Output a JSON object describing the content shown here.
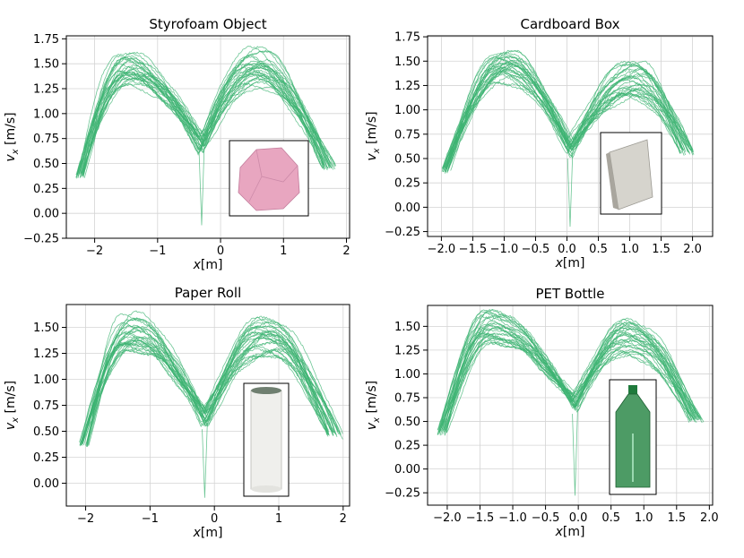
{
  "figure": {
    "trace_color": "#3cb371",
    "xlabel_var": "x",
    "xlabel_unit": "[m]",
    "ylabel_var": "v",
    "ylabel_sub": "x",
    "ylabel_unit": " [m/s]"
  },
  "chart_data": [
    {
      "type": "line",
      "title": "Styrofoam Object",
      "xlabel": "x[m]",
      "ylabel": "v_x [m/s]",
      "xlim": [
        -2.45,
        2.05
      ],
      "ylim": [
        -0.25,
        1.78
      ],
      "xticks": [
        -2,
        -1,
        0,
        1,
        2
      ],
      "xtick_labels": [
        "−2",
        "−1",
        "0",
        "1",
        "2"
      ],
      "yticks": [
        -0.25,
        0,
        0.25,
        0.5,
        0.75,
        1.0,
        1.25,
        1.5,
        1.75
      ],
      "ytick_labels": [
        "−0.25",
        "0.00",
        "0.25",
        "0.50",
        "0.75",
        "1.00",
        "1.25",
        "1.50",
        "1.75"
      ],
      "grid": true,
      "series_summary": {
        "n_traces": 30,
        "x_min": -2.3,
        "x_max": 1.85,
        "left_peak_x": -1.5,
        "left_peak_vx": 1.5,
        "right_peak_x": 0.55,
        "right_peak_vx": 1.55,
        "dip_x": -0.3,
        "dip_vx": 0.7,
        "end_vx": 0.45,
        "dip_outlier_vx": -0.12
      },
      "inset": {
        "label": "Styrofoam object",
        "kind": "blob",
        "color": "#e8a6c0"
      }
    },
    {
      "type": "line",
      "title": "Cardboard Box",
      "xlabel": "x[m]",
      "ylabel": "v_x [m/s]",
      "xlim": [
        -2.22,
        2.32
      ],
      "ylim": [
        -0.3,
        1.76
      ],
      "xticks": [
        -2.0,
        -1.5,
        -1.0,
        -0.5,
        0.0,
        0.5,
        1.0,
        1.5,
        2.0
      ],
      "xtick_labels": [
        "−2.0",
        "−1.5",
        "−1.0",
        "−0.5",
        "0.0",
        "0.5",
        "1.0",
        "1.5",
        "2.0"
      ],
      "yticks": [
        -0.25,
        0,
        0.25,
        0.5,
        0.75,
        1.0,
        1.25,
        1.5,
        1.75
      ],
      "ytick_labels": [
        "−0.25",
        "0.00",
        "0.25",
        "0.50",
        "0.75",
        "1.00",
        "1.25",
        "1.50",
        "1.75"
      ],
      "grid": true,
      "series_summary": {
        "n_traces": 30,
        "x_min": -2.0,
        "x_max": 2.05,
        "left_peak_x": -1.0,
        "left_peak_vx": 1.5,
        "right_peak_x": 1.05,
        "right_peak_vx": 1.38,
        "dip_x": 0.05,
        "dip_vx": 0.6,
        "end_vx": 0.55,
        "dip_outlier_vx": -0.2
      },
      "inset": {
        "label": "Cardboard box",
        "kind": "box",
        "color": "#d6d4cd"
      }
    },
    {
      "type": "line",
      "title": "Paper Roll",
      "xlabel": "x[m]",
      "ylabel": "v_x [m/s]",
      "xlim": [
        -2.3,
        2.1
      ],
      "ylim": [
        -0.22,
        1.72
      ],
      "xticks": [
        -2,
        -1,
        0,
        1,
        2
      ],
      "xtick_labels": [
        "−2",
        "−1",
        "0",
        "1",
        "2"
      ],
      "yticks": [
        0,
        0.25,
        0.5,
        0.75,
        1.0,
        1.25,
        1.5
      ],
      "ytick_labels": [
        "0.00",
        "0.25",
        "0.50",
        "0.75",
        "1.00",
        "1.25",
        "1.50"
      ],
      "grid": true,
      "series_summary": {
        "n_traces": 30,
        "x_min": -2.1,
        "x_max": 2.0,
        "left_peak_x": -1.3,
        "left_peak_vx": 1.52,
        "right_peak_x": 0.8,
        "right_peak_vx": 1.5,
        "dip_x": -0.15,
        "dip_vx": 0.62,
        "end_vx": 0.45,
        "dip_outlier_vx": -0.14
      },
      "inset": {
        "label": "Paper roll",
        "kind": "roll",
        "color": "#efefec"
      }
    },
    {
      "type": "line",
      "title": "PET Bottle",
      "xlabel": "x[m]",
      "ylabel": "v_x [m/s]",
      "xlim": [
        -2.3,
        2.05
      ],
      "ylim": [
        -0.38,
        1.72
      ],
      "xticks": [
        -2.0,
        -1.5,
        -1.0,
        -0.5,
        0.0,
        0.5,
        1.0,
        1.5,
        2.0
      ],
      "xtick_labels": [
        "−2.0",
        "−1.5",
        "−1.0",
        "−0.5",
        "0.0",
        "0.5",
        "1.0",
        "1.5",
        "2.0"
      ],
      "yticks": [
        -0.25,
        0,
        0.25,
        0.5,
        0.75,
        1.0,
        1.25,
        1.5
      ],
      "ytick_labels": [
        "−0.25",
        "0.00",
        "0.25",
        "0.50",
        "0.75",
        "1.00",
        "1.25",
        "1.50"
      ],
      "grid": true,
      "series_summary": {
        "n_traces": 30,
        "x_min": -2.15,
        "x_max": 1.95,
        "left_peak_x": -1.35,
        "left_peak_vx": 1.55,
        "right_peak_x": 0.75,
        "right_peak_vx": 1.45,
        "dip_x": -0.05,
        "dip_vx": 0.68,
        "end_vx": 0.5,
        "dip_outlier_vx": -0.28
      },
      "inset": {
        "label": "PET bottle",
        "kind": "bottle",
        "color": "#2e8a4a"
      }
    }
  ]
}
